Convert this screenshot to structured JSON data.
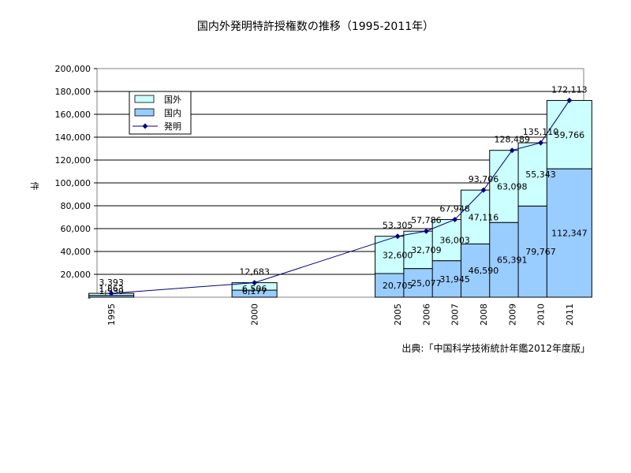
{
  "chart_data": {
    "type": "bar",
    "stacked": true,
    "title": "国内外発明特許授権数の推移（1995-2011年）",
    "ylabel": "件",
    "xlabel": "",
    "ylim": [
      0,
      200000
    ],
    "yticks": [
      "200,000",
      "180,000",
      "160,000",
      "140,000",
      "120,000",
      "100,000",
      "80,000",
      "60,000",
      "40,000",
      "20,000",
      "-"
    ],
    "categories": [
      "1995",
      "2000",
      "2005",
      "2006",
      "2007",
      "2008",
      "2009",
      "2010",
      "2011"
    ],
    "category_years": [
      1995,
      2000,
      2005,
      2006,
      2007,
      2008,
      2009,
      2010,
      2011
    ],
    "series": [
      {
        "name": "国内",
        "color": "#99ccff",
        "values": [
          1530,
          6177,
          20705,
          25077,
          31945,
          46590,
          65391,
          79767,
          112347
        ],
        "labels": [
          "1,530",
          "6,177",
          "20,705",
          "25,077",
          "31,945",
          "46,590",
          "65,391",
          "79,767",
          "112,347"
        ]
      },
      {
        "name": "国外",
        "color": "#ccffff",
        "values": [
          1863,
          6506,
          32600,
          32709,
          36003,
          47116,
          63098,
          55343,
          59766
        ],
        "labels": [
          "1,863",
          "6,506",
          "32,600",
          "32,709",
          "36,003",
          "47,116",
          "63,098",
          "55,343",
          "59,766"
        ]
      }
    ],
    "line": {
      "name": "発明",
      "color": "#000080",
      "values": [
        3393,
        12683,
        53305,
        57786,
        67948,
        93706,
        128489,
        135110,
        172113
      ],
      "labels": [
        "3,393",
        "12,683",
        "53,305",
        "57,786",
        "67,948",
        "93,706",
        "128,489",
        "135,110",
        "172,113"
      ]
    },
    "legend_order": [
      "国外",
      "国内",
      "発明"
    ],
    "legend_position": "top-left",
    "grid": true,
    "source": "出典:「中国科学技術統計年鑑2012年度版」"
  }
}
